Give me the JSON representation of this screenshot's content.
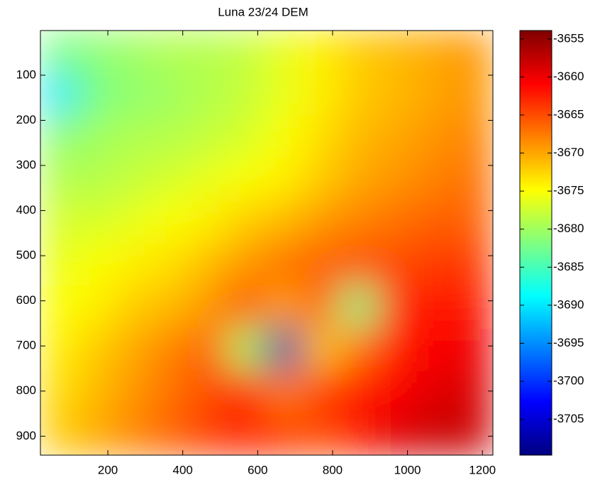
{
  "chart_data": {
    "type": "heatmap",
    "title": "Luna 23/24 DEM",
    "x": [
      70,
      170,
      270,
      370,
      470,
      570,
      670,
      770,
      870,
      970,
      1070,
      1170
    ],
    "y": [
      48,
      142,
      236,
      330,
      424,
      518,
      612,
      706,
      800,
      895
    ],
    "z": [
      [
        -3682,
        -3681,
        -3680,
        -3679,
        -3679,
        -3678,
        -3676,
        -3674,
        -3672,
        -3671,
        -3670,
        -3669
      ],
      [
        -3690,
        -3682,
        -3681,
        -3680,
        -3679,
        -3678,
        -3676,
        -3674,
        -3672,
        -3671,
        -3670,
        -3669
      ],
      [
        -3681,
        -3680,
        -3679,
        -3679,
        -3678,
        -3677,
        -3675,
        -3673,
        -3671,
        -3670,
        -3669,
        -3668
      ],
      [
        -3679,
        -3679,
        -3678,
        -3677,
        -3676,
        -3675,
        -3674,
        -3672,
        -3670,
        -3669,
        -3668,
        -3667
      ],
      [
        -3677,
        -3677,
        -3676,
        -3675,
        -3674,
        -3672,
        -3671,
        -3669,
        -3668,
        -3667,
        -3666,
        -3666
      ],
      [
        -3676,
        -3675,
        -3674,
        -3673,
        -3671,
        -3669,
        -3667,
        -3666,
        -3665,
        -3665,
        -3664,
        -3664
      ],
      [
        -3675,
        -3674,
        -3672,
        -3671,
        -3669,
        -3665,
        -3670,
        -3666,
        -3682,
        -3663,
        -3662,
        -3662
      ],
      [
        -3674,
        -3672,
        -3670,
        -3668,
        -3666,
        -3680,
        -3707,
        -3672,
        -3667,
        -3662,
        -3661,
        -3660
      ],
      [
        -3673,
        -3671,
        -3669,
        -3667,
        -3665,
        -3662,
        -3668,
        -3664,
        -3662,
        -3661,
        -3659,
        -3659
      ],
      [
        -3672,
        -3670,
        -3668,
        -3666,
        -3664,
        -3663,
        -3664,
        -3665,
        -3662,
        -3659,
        -3658,
        -3658
      ]
    ],
    "xlim": [
      20,
      1228
    ],
    "xticks": [
      200,
      400,
      600,
      800,
      1000,
      1200
    ],
    "ylim": [
      1,
      942
    ],
    "yticks": [
      100,
      200,
      300,
      400,
      500,
      600,
      700,
      800,
      900
    ],
    "y_reversed": true,
    "colormap": "jet",
    "clim": [
      -3709.7,
      -3653.9
    ],
    "cticks": [
      -3655,
      -3660,
      -3665,
      -3670,
      -3675,
      -3680,
      -3685,
      -3690,
      -3695,
      -3700,
      -3705
    ]
  }
}
